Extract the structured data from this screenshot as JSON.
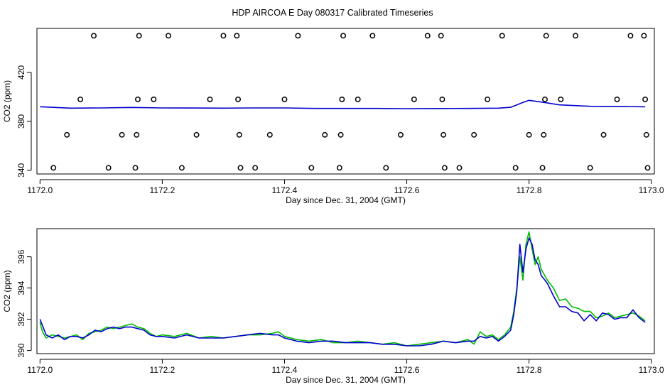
{
  "figure": {
    "title": "HDP AIRCOA E  Day 080317  Calibrated Timeseries"
  },
  "chart_data": [
    {
      "type": "line",
      "xlabel": "Day since Dec. 31, 2004 (GMT)",
      "ylabel": "CO2 (ppm)",
      "xlim": [
        1171.995,
        1173.005
      ],
      "ylim": [
        337,
        456
      ],
      "xticks": [
        1172.0,
        1172.2,
        1172.4,
        1172.6,
        1172.8,
        1173.0
      ],
      "xtick_labels": [
        "1172.0",
        "1172.2",
        "1172.4",
        "1172.6",
        "1172.8",
        "1173.0"
      ],
      "yticks": [
        340,
        380,
        420
      ],
      "ytick_labels": [
        "340",
        "380",
        "420"
      ],
      "grid": false,
      "series": [
        {
          "name": "",
          "kind": "line",
          "color": "#0000cc",
          "x": [
            1172.0,
            1172.05,
            1172.1,
            1172.15,
            1172.2,
            1172.25,
            1172.3,
            1172.35,
            1172.4,
            1172.45,
            1172.5,
            1172.55,
            1172.6,
            1172.65,
            1172.7,
            1172.75,
            1172.77,
            1172.78,
            1172.79,
            1172.8,
            1172.82,
            1172.85,
            1172.9,
            1172.95,
            1172.99
          ],
          "y": [
            392,
            390.8,
            391.0,
            391.4,
            391.0,
            390.9,
            390.8,
            391.0,
            391.0,
            390.6,
            390.6,
            390.6,
            390.4,
            390.5,
            390.6,
            390.8,
            391.5,
            393.5,
            395.5,
            397.2,
            395.8,
            393.5,
            392.3,
            392.2,
            391.9
          ]
        },
        {
          "name": "",
          "kind": "scatter",
          "color": "#000000",
          "x": [
            1172.022,
            1172.044,
            1172.066,
            1172.088,
            1172.112,
            1172.134,
            1172.156,
            1172.158,
            1172.16,
            1172.162,
            1172.186,
            1172.21,
            1172.232,
            1172.256,
            1172.278,
            1172.3,
            1172.322,
            1172.324,
            1172.326,
            1172.328,
            1172.352,
            1172.376,
            1172.4,
            1172.422,
            1172.444,
            1172.466,
            1172.49,
            1172.492,
            1172.494,
            1172.496,
            1172.52,
            1172.544,
            1172.566,
            1172.59,
            1172.612,
            1172.634,
            1172.656,
            1172.658,
            1172.66,
            1172.662,
            1172.686,
            1172.71,
            1172.732,
            1172.756,
            1172.778,
            1172.8,
            1172.822,
            1172.824,
            1172.826,
            1172.828,
            1172.852,
            1172.876,
            1172.9,
            1172.922,
            1172.944,
            1172.966,
            1172.988,
            1172.99,
            1172.992,
            1172.994
          ],
          "y": [
            342,
            369,
            398,
            450,
            342,
            369,
            342,
            369,
            398,
            450,
            398,
            450,
            342,
            369,
            398,
            450,
            450,
            398,
            369,
            342,
            342,
            369,
            398,
            450,
            342,
            369,
            342,
            369,
            398,
            450,
            398,
            450,
            342,
            369,
            398,
            450,
            450,
            398,
            369,
            342,
            342,
            369,
            398,
            450,
            342,
            369,
            342,
            369,
            398,
            450,
            398,
            450,
            342,
            369,
            398,
            450,
            450,
            398,
            369,
            342
          ]
        }
      ]
    },
    {
      "type": "line",
      "xlabel": "Day since Dec. 31, 2004 (GMT)",
      "ylabel": "CO2 (ppm)",
      "xlim": [
        1171.995,
        1173.005
      ],
      "ylim": [
        389.8,
        397.8
      ],
      "xticks": [
        1172.0,
        1172.2,
        1172.4,
        1172.6,
        1172.8,
        1173.0
      ],
      "xtick_labels": [
        "1172.0",
        "1172.2",
        "1172.4",
        "1172.6",
        "1172.8",
        "1173.0"
      ],
      "yticks": [
        390,
        392,
        394,
        396
      ],
      "ytick_labels": [
        "390",
        "392",
        "394",
        "396"
      ],
      "grid": false,
      "series": [
        {
          "name": "",
          "color": "#00bb00",
          "x": [
            1172.0,
            1172.004,
            1172.01,
            1172.02,
            1172.03,
            1172.04,
            1172.05,
            1172.06,
            1172.07,
            1172.08,
            1172.09,
            1172.1,
            1172.11,
            1172.12,
            1172.13,
            1172.14,
            1172.15,
            1172.16,
            1172.17,
            1172.18,
            1172.19,
            1172.2,
            1172.22,
            1172.24,
            1172.26,
            1172.28,
            1172.3,
            1172.32,
            1172.34,
            1172.36,
            1172.38,
            1172.39,
            1172.4,
            1172.42,
            1172.44,
            1172.46,
            1172.48,
            1172.5,
            1172.52,
            1172.54,
            1172.56,
            1172.58,
            1172.6,
            1172.62,
            1172.64,
            1172.66,
            1172.68,
            1172.7,
            1172.71,
            1172.72,
            1172.73,
            1172.74,
            1172.75,
            1172.76,
            1172.77,
            1172.775,
            1172.78,
            1172.785,
            1172.79,
            1172.795,
            1172.8,
            1172.805,
            1172.81,
            1172.815,
            1172.82,
            1172.83,
            1172.84,
            1172.85,
            1172.86,
            1172.87,
            1172.88,
            1172.89,
            1172.9,
            1172.91,
            1172.92,
            1172.93,
            1172.94,
            1172.95,
            1172.96,
            1172.97,
            1172.98,
            1172.99
          ],
          "y": [
            391.8,
            391.2,
            390.8,
            391.0,
            390.9,
            390.8,
            390.9,
            391.0,
            390.7,
            391.1,
            391.2,
            391.3,
            391.5,
            391.4,
            391.5,
            391.6,
            391.7,
            391.5,
            391.4,
            391.1,
            390.9,
            391.0,
            390.9,
            391.1,
            390.8,
            390.9,
            390.8,
            390.9,
            391.0,
            391.0,
            391.1,
            391.2,
            390.9,
            390.7,
            390.6,
            390.7,
            390.5,
            390.5,
            390.6,
            390.5,
            390.4,
            390.5,
            390.3,
            390.4,
            390.5,
            390.6,
            390.5,
            390.7,
            390.4,
            391.2,
            390.9,
            391.0,
            390.7,
            391.0,
            391.5,
            392.5,
            394.0,
            396.0,
            394.5,
            396.8,
            397.6,
            396.5,
            395.5,
            396.0,
            395.2,
            394.5,
            394.0,
            393.2,
            393.3,
            392.8,
            392.7,
            392.5,
            392.5,
            392.1,
            392.2,
            392.4,
            392.1,
            392.2,
            392.3,
            392.4,
            392.2,
            391.9
          ]
        },
        {
          "name": "",
          "color": "#0000cc",
          "x": [
            1172.0,
            1172.005,
            1172.01,
            1172.02,
            1172.03,
            1172.04,
            1172.05,
            1172.06,
            1172.07,
            1172.08,
            1172.09,
            1172.1,
            1172.11,
            1172.12,
            1172.13,
            1172.14,
            1172.15,
            1172.16,
            1172.17,
            1172.18,
            1172.19,
            1172.2,
            1172.22,
            1172.24,
            1172.26,
            1172.28,
            1172.3,
            1172.32,
            1172.34,
            1172.36,
            1172.38,
            1172.39,
            1172.4,
            1172.42,
            1172.44,
            1172.46,
            1172.48,
            1172.5,
            1172.52,
            1172.54,
            1172.56,
            1172.58,
            1172.6,
            1172.62,
            1172.64,
            1172.66,
            1172.68,
            1172.7,
            1172.71,
            1172.72,
            1172.73,
            1172.74,
            1172.75,
            1172.76,
            1172.77,
            1172.775,
            1172.78,
            1172.785,
            1172.79,
            1172.795,
            1172.8,
            1172.805,
            1172.81,
            1172.815,
            1172.82,
            1172.83,
            1172.84,
            1172.85,
            1172.86,
            1172.87,
            1172.88,
            1172.89,
            1172.9,
            1172.91,
            1172.92,
            1172.93,
            1172.94,
            1172.95,
            1172.96,
            1172.97,
            1172.98,
            1172.99
          ],
          "y": [
            392.0,
            391.5,
            391.0,
            390.8,
            391.0,
            390.7,
            390.9,
            390.9,
            390.8,
            391.0,
            391.3,
            391.2,
            391.4,
            391.5,
            391.4,
            391.5,
            391.5,
            391.4,
            391.3,
            391.0,
            390.9,
            390.9,
            390.8,
            391.0,
            390.8,
            390.8,
            390.8,
            390.9,
            391.0,
            391.1,
            391.0,
            391.0,
            390.8,
            390.6,
            390.5,
            390.6,
            390.6,
            390.5,
            390.5,
            390.5,
            390.4,
            390.4,
            390.3,
            390.3,
            390.4,
            390.6,
            390.5,
            390.6,
            390.6,
            390.9,
            390.8,
            390.9,
            390.6,
            390.9,
            391.3,
            392.3,
            393.8,
            396.8,
            395.0,
            396.5,
            397.2,
            396.8,
            395.8,
            395.5,
            394.8,
            394.3,
            393.5,
            392.8,
            392.8,
            392.5,
            392.4,
            391.9,
            392.3,
            391.9,
            392.4,
            392.3,
            392.0,
            392.1,
            392.1,
            392.6,
            392.1,
            391.8
          ]
        }
      ]
    }
  ]
}
